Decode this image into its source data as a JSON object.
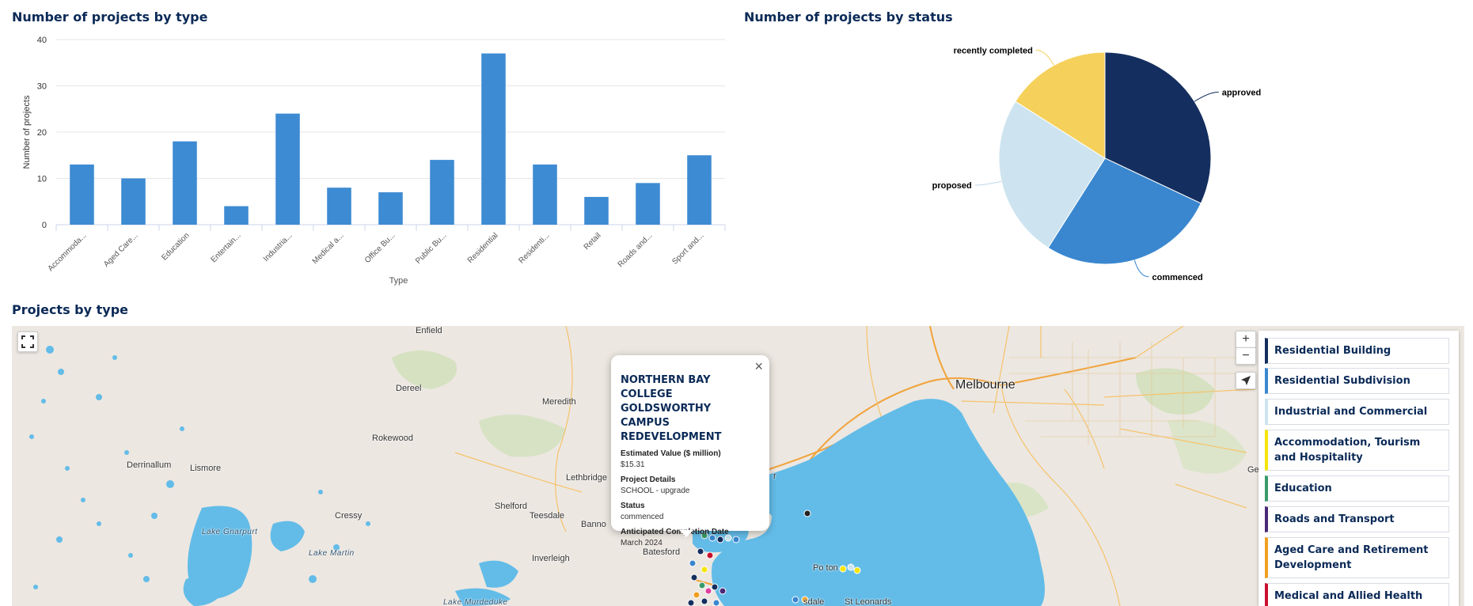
{
  "bar_section": {
    "title": "Number of projects by type"
  },
  "pie_section": {
    "title": "Number of projects by status"
  },
  "map_section": {
    "title": "Projects by type"
  },
  "chart_data": [
    {
      "type": "bar",
      "title": "Number of projects by type",
      "xlabel": "Type",
      "ylabel": "Number of projects",
      "ylim": [
        0,
        40
      ],
      "yticks": [
        0,
        10,
        20,
        30,
        40
      ],
      "grid": true,
      "color": "#3d8bd2",
      "categories": [
        "Accommoda...",
        "Aged Care...",
        "Education",
        "Entertain...",
        "Industria...",
        "Medical a...",
        "Office Bu...",
        "Public Bu...",
        "Residential",
        "Residenti...",
        "Retail",
        "Roads and...",
        "Sport and..."
      ],
      "values": [
        13,
        10,
        18,
        4,
        24,
        8,
        7,
        14,
        37,
        13,
        6,
        9,
        15
      ]
    },
    {
      "type": "pie",
      "title": "Number of projects by status",
      "slices": [
        {
          "label": "approved",
          "value": 32,
          "color": "#142f5f"
        },
        {
          "label": "commenced",
          "value": 27,
          "color": "#3a87cf"
        },
        {
          "label": "proposed",
          "value": 25,
          "color": "#cde4f0"
        },
        {
          "label": "recently completed",
          "value": 16,
          "color": "#f5d05a"
        }
      ]
    }
  ],
  "map": {
    "labels": {
      "enfield": "Enfield",
      "dereel": "Dereel",
      "meredith": "Meredith",
      "rokewood": "Rokewood",
      "derrinallum": "Derrinallum",
      "lismore": "Lismore",
      "lethbridge": "Lethbridge",
      "cressy": "Cressy",
      "shelford": "Shelford",
      "teesdale": "Teesdale",
      "bannockburn": "Banno",
      "lake_gnarpurt": "Lake Gnarpurt",
      "lake_martin": "Lake Martin",
      "inverleigh": "Inverleigh",
      "batesford": "Batesford",
      "lake_murdeduke": "Lake Murdeduke",
      "melbourne": "Melbourne",
      "portarlington": "Po         ton",
      "st_leonards": "St Leonards",
      "drysdale": "sdale",
      "geelong_partial": "Ge",
      "werribee_partial": "r"
    },
    "controls": {
      "zoom_in": "+",
      "zoom_out": "−"
    },
    "popup": {
      "title": "NORTHERN BAY COLLEGE GOLDSWORTHY CAMPUS REDEVELOPMENT",
      "close": "×",
      "fields": [
        {
          "label": "Estimated Value ($ million)",
          "value": "$15.31"
        },
        {
          "label": "Project Details",
          "value": "SCHOOL - upgrade"
        },
        {
          "label": "Status",
          "value": "commenced"
        },
        {
          "label": "Anticipated Completion Date",
          "value": "March 2024"
        }
      ]
    },
    "legend": [
      {
        "label": "Residential Building",
        "color": "#142f5f"
      },
      {
        "label": "Residential Subdivision",
        "color": "#3a87cf"
      },
      {
        "label": "Industrial and Commercial",
        "color": "#cde4f0"
      },
      {
        "label": "Accommodation, Tourism and Hospitality",
        "color": "#f5e50a"
      },
      {
        "label": "Education",
        "color": "#3a9a6a"
      },
      {
        "label": "Roads and Transport",
        "color": "#4a2a78"
      },
      {
        "label": "Aged Care and Retirement Development",
        "color": "#f0a020"
      },
      {
        "label": "Medical and Allied Health",
        "color": "#c8102e"
      }
    ]
  }
}
